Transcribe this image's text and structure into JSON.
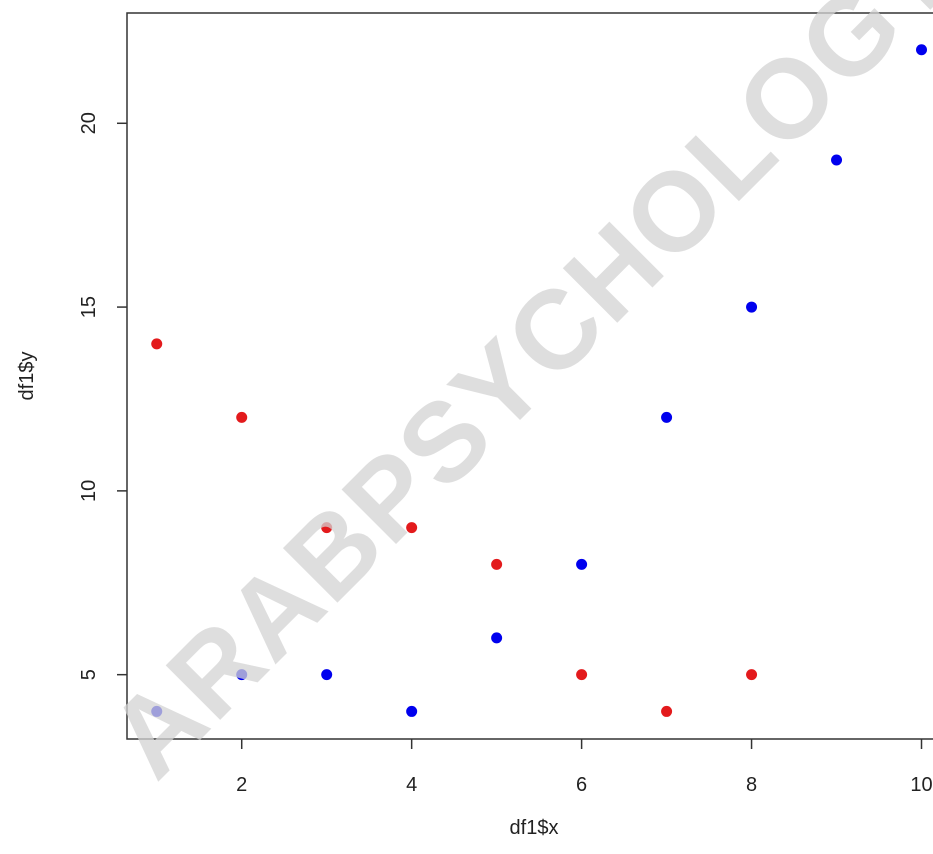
{
  "chart_data": {
    "type": "scatter",
    "xlabel": "df1$x",
    "ylabel": "df1$y",
    "xlim": [
      0.65,
      10.3
    ],
    "ylim": [
      3.25,
      23.0
    ],
    "x_ticks": [
      2,
      4,
      6,
      8,
      10
    ],
    "y_ticks": [
      5,
      10,
      15,
      20
    ],
    "grid": false,
    "series": [
      {
        "color": "#e31a1c",
        "x": [
          1,
          2,
          3,
          4,
          5,
          6,
          7,
          8
        ],
        "y": [
          14,
          12,
          9,
          9,
          8,
          5,
          4,
          5
        ]
      },
      {
        "color": "#0000ee",
        "x": [
          1,
          2,
          3,
          4,
          5,
          6,
          7,
          8,
          9,
          10
        ],
        "y": [
          4,
          5,
          5,
          4,
          6,
          8,
          12,
          15,
          19,
          22
        ]
      }
    ]
  },
  "watermark": "ARABPSYCHOLOGY"
}
